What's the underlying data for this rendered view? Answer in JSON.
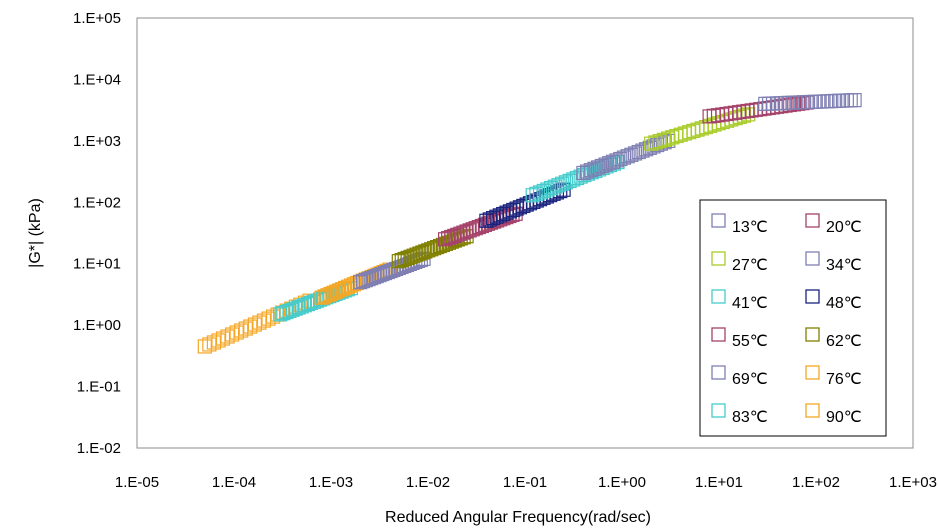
{
  "chart_data": {
    "type": "scatter",
    "title": "",
    "xlabel": "Reduced Angular Frequency(rad/sec)",
    "ylabel": "|G*| (kPa)",
    "xscale": "log",
    "yscale": "log",
    "xlim": [
      1e-05,
      1000
    ],
    "ylim": [
      0.01,
      100000
    ],
    "x_ticks": [
      "1.E-05",
      "1.E-04",
      "1.E-03",
      "1.E-02",
      "1.E-01",
      "1.E+00",
      "1.E+01",
      "1.E+02",
      "1.E+03"
    ],
    "y_ticks": [
      "1.E-02",
      "1.E-01",
      "1.E+00",
      "1.E+01",
      "1.E+02",
      "1.E+03",
      "1.E+04",
      "1.E+05"
    ],
    "grid": false,
    "legend_position": "right",
    "marker": "hollow-square",
    "series": [
      {
        "name": "13℃",
        "color": "#7F7FB3",
        "x_range": [
          30,
          250
        ],
        "y_range": [
          4000,
          4600
        ]
      },
      {
        "name": "20℃",
        "color": "#A5426A",
        "x_range": [
          8,
          80
        ],
        "y_range": [
          2500,
          4200
        ]
      },
      {
        "name": "27℃",
        "color": "#A9CC2A",
        "x_range": [
          2,
          20
        ],
        "y_range": [
          900,
          2700
        ]
      },
      {
        "name": "34℃",
        "color": "#7F7FB3",
        "x_range": [
          0.4,
          3
        ],
        "y_range": [
          300,
          1000
        ]
      },
      {
        "name": "41℃",
        "color": "#44CCCC",
        "x_range": [
          0.12,
          0.9
        ],
        "y_range": [
          130,
          450
        ]
      },
      {
        "name": "48℃",
        "color": "#1A237E",
        "x_range": [
          0.04,
          0.25
        ],
        "y_range": [
          50,
          160
        ]
      },
      {
        "name": "55℃",
        "color": "#A5426A",
        "x_range": [
          0.015,
          0.08
        ],
        "y_range": [
          25,
          65
        ]
      },
      {
        "name": "62℃",
        "color": "#808000",
        "x_range": [
          0.005,
          0.025
        ],
        "y_range": [
          11,
          28
        ]
      },
      {
        "name": "69℃",
        "color": "#7F7FB3",
        "x_range": [
          0.002,
          0.009
        ],
        "y_range": [
          5,
          12
        ]
      },
      {
        "name": "76℃",
        "color": "#F5A623",
        "x_range": [
          0.0008,
          0.004
        ],
        "y_range": [
          2.8,
          8
        ]
      },
      {
        "name": "83℃",
        "color": "#44CCCC",
        "x_range": [
          0.0003,
          0.0016
        ],
        "y_range": [
          1.5,
          4
        ]
      },
      {
        "name": "90℃",
        "color": "#F5A623",
        "x_range": [
          5e-05,
          0.0006
        ],
        "y_range": [
          0.45,
          2.5
        ]
      }
    ]
  }
}
